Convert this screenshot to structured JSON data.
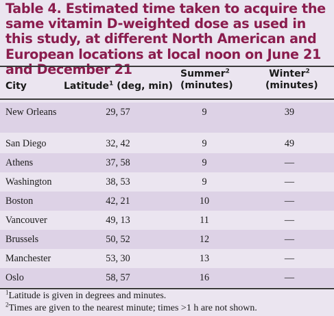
{
  "title": "Table 4.  Estimated time taken to acquire the same vitamin D-weighted dose as used in this study, at different North American and European locations at local noon on June 21 and December 21",
  "headers": {
    "city": "City",
    "latitude": "Latitude",
    "latitude_sup": "1",
    "latitude_unit": " (deg, min)",
    "summer": "Summer",
    "summer_sup": "2",
    "summer_unit": "(minutes)",
    "winter": "Winter",
    "winter_sup": "2",
    "winter_unit": "(minutes)"
  },
  "rows": [
    {
      "city": "New Orleans",
      "latitude": "29, 57",
      "summer": "9",
      "winter": "39"
    },
    {
      "city": "San Diego",
      "latitude": "32, 42",
      "summer": "9",
      "winter": "49"
    },
    {
      "city": "Athens",
      "latitude": "37, 58",
      "summer": "9",
      "winter": "—"
    },
    {
      "city": "Washington",
      "latitude": "38, 53",
      "summer": "9",
      "winter": "—"
    },
    {
      "city": "Boston",
      "latitude": "42, 21",
      "summer": "10",
      "winter": "—"
    },
    {
      "city": "Vancouver",
      "latitude": "49, 13",
      "summer": "11",
      "winter": "—"
    },
    {
      "city": "Brussels",
      "latitude": "50, 52",
      "summer": "12",
      "winter": "—"
    },
    {
      "city": "Manchester",
      "latitude": "53, 30",
      "summer": "13",
      "winter": "—"
    },
    {
      "city": "Oslo",
      "latitude": "58, 57",
      "summer": "16",
      "winter": "—"
    }
  ],
  "footnotes": [
    {
      "sup": "1",
      "text": "Latitude is given in degrees and minutes."
    },
    {
      "sup": "2",
      "text": "Times are given to the nearest minute; times >1 h are not shown."
    }
  ]
}
